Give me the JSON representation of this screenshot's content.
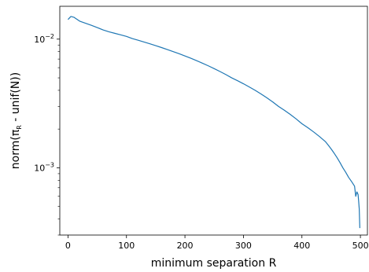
{
  "chart_data": {
    "type": "line",
    "xlabel": "minimum separation R",
    "ylabel": {
      "prefix": "norm(π",
      "subscript": "R",
      "suffix": " - unif(N))"
    },
    "yscale": "log",
    "xlim": [
      -14,
      512
    ],
    "ylim": [
      0.0003,
      0.018
    ],
    "xticks": [
      0,
      100,
      200,
      300,
      400,
      500
    ],
    "yticks": [
      {
        "value": 0.01,
        "base": "10",
        "exp": "−2"
      },
      {
        "value": 0.001,
        "base": "10",
        "exp": "−3"
      }
    ],
    "grid": false,
    "line_color": "#1f77b4",
    "series": [
      {
        "x": [
          0,
          5,
          10,
          15,
          20,
          30,
          40,
          50,
          60,
          70,
          80,
          90,
          100,
          110,
          120,
          130,
          140,
          150,
          160,
          170,
          180,
          190,
          200,
          210,
          220,
          230,
          240,
          250,
          260,
          270,
          280,
          290,
          300,
          310,
          320,
          330,
          340,
          350,
          360,
          370,
          380,
          390,
          400,
          410,
          420,
          430,
          440,
          445,
          450,
          455,
          460,
          465,
          470,
          475,
          480,
          485,
          490,
          492,
          494,
          496,
          497,
          498,
          499
        ],
        "y": [
          0.0142,
          0.015,
          0.0148,
          0.0143,
          0.0138,
          0.0133,
          0.0128,
          0.0123,
          0.0118,
          0.0114,
          0.0111,
          0.0108,
          0.0105,
          0.0101,
          0.0098,
          0.0095,
          0.0092,
          0.0089,
          0.0086,
          0.0083,
          0.008,
          0.0077,
          0.0074,
          0.0071,
          0.0068,
          0.0065,
          0.0062,
          0.0059,
          0.0056,
          0.0053,
          0.005,
          0.00475,
          0.0045,
          0.00425,
          0.004,
          0.00375,
          0.0035,
          0.00325,
          0.003,
          0.0028,
          0.0026,
          0.0024,
          0.0022,
          0.00205,
          0.0019,
          0.00175,
          0.0016,
          0.0015,
          0.0014,
          0.0013,
          0.0012,
          0.0011,
          0.001,
          0.00092,
          0.00084,
          0.00078,
          0.00072,
          0.0006,
          0.00065,
          0.00062,
          0.00055,
          0.00048,
          0.00034
        ]
      }
    ]
  }
}
